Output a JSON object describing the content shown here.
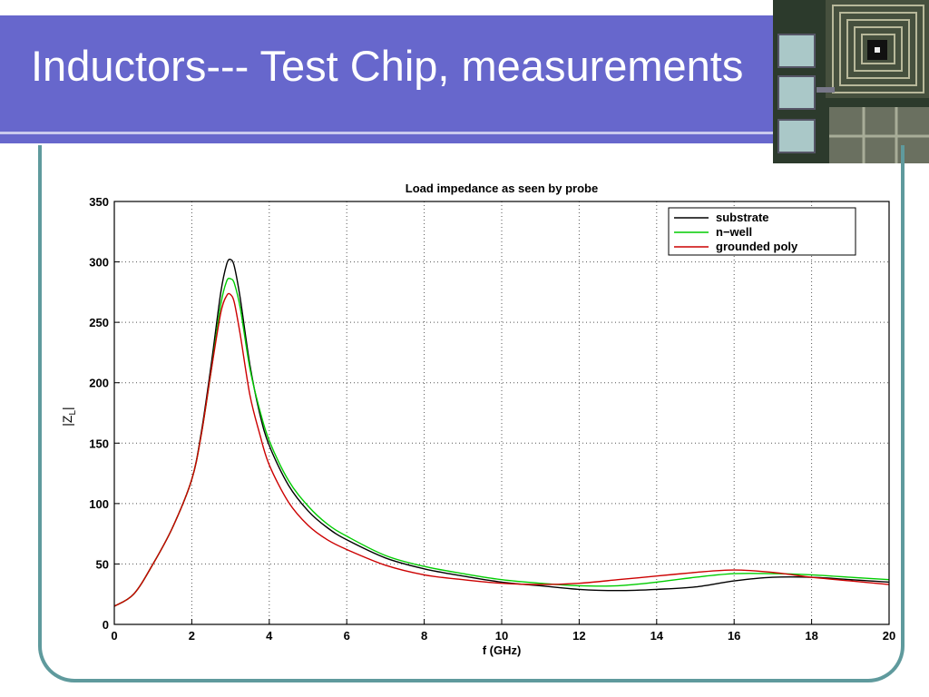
{
  "slide": {
    "title": "Inductors--- Test Chip, measurements"
  },
  "chart_data": {
    "type": "line",
    "title": "Load impedance as seen by probe",
    "xlabel": "f (GHz)",
    "ylabel_main": "|Z",
    "ylabel_sub": "L",
    "ylabel_end": "|",
    "xlim": [
      0,
      20
    ],
    "ylim": [
      0,
      350
    ],
    "xticks": [
      0,
      2,
      4,
      6,
      8,
      10,
      12,
      14,
      16,
      18,
      20
    ],
    "yticks": [
      0,
      50,
      100,
      150,
      200,
      250,
      300,
      350
    ],
    "grid": true,
    "legend_position": "top-right",
    "series": [
      {
        "name": "substrate",
        "color": "#000000",
        "x": [
          0,
          0.5,
          1,
          1.5,
          2,
          2.25,
          2.5,
          2.75,
          2.9,
          3.0,
          3.1,
          3.25,
          3.5,
          3.75,
          4,
          4.5,
          5,
          5.5,
          6,
          7,
          8,
          9,
          10,
          11,
          12,
          13,
          14,
          15,
          16,
          17,
          18,
          19,
          20
        ],
        "y": [
          15,
          25,
          50,
          80,
          120,
          160,
          215,
          275,
          298,
          302,
          296,
          270,
          215,
          175,
          148,
          115,
          94,
          80,
          70,
          55,
          46,
          40,
          35,
          32,
          29,
          28,
          29,
          31,
          36,
          39,
          39,
          37,
          35
        ]
      },
      {
        "name": "n−well",
        "color": "#00cc00",
        "x": [
          0,
          0.5,
          1,
          1.5,
          2,
          2.25,
          2.5,
          2.75,
          2.9,
          3.0,
          3.1,
          3.25,
          3.5,
          3.75,
          4,
          4.5,
          5,
          5.5,
          6,
          7,
          8,
          9,
          10,
          11,
          12,
          13,
          14,
          15,
          16,
          17,
          18,
          19,
          20
        ],
        "y": [
          15,
          25,
          50,
          80,
          120,
          158,
          210,
          265,
          284,
          286,
          282,
          262,
          212,
          178,
          152,
          119,
          98,
          83,
          73,
          57,
          48,
          42,
          37,
          34,
          32,
          32,
          35,
          39,
          42,
          42,
          41,
          39,
          37
        ]
      },
      {
        "name": "grounded poly",
        "color": "#cc0000",
        "x": [
          0,
          0.5,
          1,
          1.5,
          2,
          2.25,
          2.5,
          2.75,
          2.9,
          3.0,
          3.1,
          3.25,
          3.5,
          3.75,
          4,
          4.5,
          5,
          5.5,
          6,
          7,
          8,
          9,
          10,
          11,
          12,
          13,
          14,
          15,
          16,
          17,
          18,
          19,
          20
        ],
        "y": [
          15,
          25,
          50,
          80,
          120,
          158,
          210,
          258,
          272,
          273,
          266,
          240,
          190,
          158,
          132,
          101,
          82,
          70,
          62,
          49,
          41,
          37,
          34,
          33,
          34,
          37,
          40,
          43,
          45,
          43,
          39,
          36,
          33
        ]
      }
    ]
  }
}
